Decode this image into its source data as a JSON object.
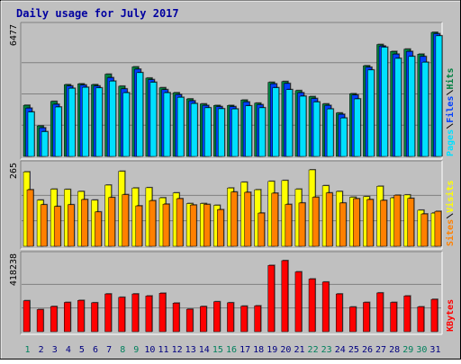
{
  "colors": {
    "background": "#c0c0c0",
    "panel": "#c0c0c0",
    "grid": "#808080",
    "title": "#0000a0",
    "hits": "#008040",
    "files": "#0040ff",
    "pages": "#00e0ff",
    "visits": "#ffff00",
    "sites": "#ff8000",
    "kbytes": "#ff0000",
    "weekend_day": "#00805c",
    "weekday_day": "#000080",
    "slash": "#000000"
  },
  "chart_data": {
    "type": "bar",
    "title": "Daily usage for July 2017",
    "categories": [
      "1",
      "2",
      "3",
      "4",
      "5",
      "6",
      "7",
      "8",
      "9",
      "10",
      "11",
      "12",
      "13",
      "14",
      "15",
      "16",
      "17",
      "18",
      "19",
      "20",
      "21",
      "22",
      "23",
      "24",
      "25",
      "26",
      "27",
      "28",
      "29",
      "30",
      "31"
    ],
    "weekend_days": [
      "1",
      "8",
      "9",
      "15",
      "16",
      "22",
      "23",
      "29",
      "30"
    ],
    "panels": [
      {
        "id": "hits-files-pages",
        "ymax_label": "6477",
        "ymax": 6477,
        "legend": [
          {
            "text": "Pages",
            "color": "#00e0ff"
          },
          {
            "text": "Files",
            "color": "#0040ff"
          },
          {
            "text": "Hits",
            "color": "#008040"
          }
        ],
        "series": [
          {
            "name": "Hits",
            "color": "#008040",
            "values": [
              2650,
              1580,
              2850,
              3720,
              3760,
              3720,
              4260,
              3640,
              4640,
              4060,
              3560,
              3300,
              2980,
              2720,
              2640,
              2640,
              2920,
              2760,
              3840,
              3880,
              3410,
              3100,
              2720,
              2250,
              3250,
              4700,
              5800,
              5440,
              5560,
              5300,
              6430
            ]
          },
          {
            "name": "Files",
            "color": "#0040ff",
            "values": [
              2500,
              1480,
              2700,
              3650,
              3700,
              3650,
              4080,
              3500,
              4520,
              3980,
              3460,
              3200,
              2880,
              2640,
              2580,
              2580,
              2820,
              2680,
              3760,
              3780,
              3300,
              3000,
              2640,
              2180,
              3180,
              4620,
              5720,
              5300,
              5440,
              5180,
              6360
            ]
          },
          {
            "name": "Pages",
            "color": "#00e0ff",
            "values": [
              2300,
              1280,
              2560,
              3530,
              3580,
              3550,
              3900,
              3300,
              4340,
              3840,
              3300,
              3060,
              2740,
              2520,
              2470,
              2460,
              2620,
              2520,
              3560,
              3460,
              3120,
              2820,
              2460,
              1990,
              2980,
              4480,
              5660,
              5080,
              5180,
              4880,
              6250
            ]
          }
        ]
      },
      {
        "id": "visits-sites",
        "ymax_label": "265",
        "ymax": 265,
        "legend": [
          {
            "text": "Sites",
            "color": "#ff8000"
          },
          {
            "text": "Visits",
            "color": "#ffff00"
          }
        ],
        "series": [
          {
            "name": "Visits",
            "color": "#ffff00",
            "values": [
              258,
              160,
              198,
              197,
              190,
              160,
              212,
              260,
              202,
              203,
              168,
              185,
              148,
              148,
              142,
              202,
              222,
              196,
              225,
              228,
              198,
              265,
              210,
              190,
              170,
              172,
              208,
              168,
              178,
              125,
              115
            ]
          },
          {
            "name": "Sites",
            "color": "#ff8000",
            "values": [
              196,
              144,
              138,
              144,
              162,
              119,
              169,
              179,
              140,
              158,
              146,
              165,
              143,
              145,
              127,
              188,
              187,
              115,
              184,
              145,
              150,
              170,
              185,
              150,
              165,
              162,
              159,
              177,
              166,
              112,
              121
            ]
          }
        ]
      },
      {
        "id": "kbytes",
        "ymax_label": "418238",
        "ymax": 418238,
        "legend": [
          {
            "text": "KBytes",
            "color": "#ff0000"
          }
        ],
        "series": [
          {
            "name": "KBytes",
            "color": "#ff0000",
            "values": [
              182000,
              130000,
              148000,
              172000,
              184000,
              170000,
              222000,
              202000,
              222000,
              210000,
              226000,
              168000,
              132000,
              148000,
              176000,
              170000,
              150000,
              152000,
              390000,
              418238,
              352000,
              310000,
              292000,
              222000,
              145000,
              172000,
              228000,
              172000,
              210000,
              146000,
              190000
            ]
          }
        ]
      }
    ]
  }
}
